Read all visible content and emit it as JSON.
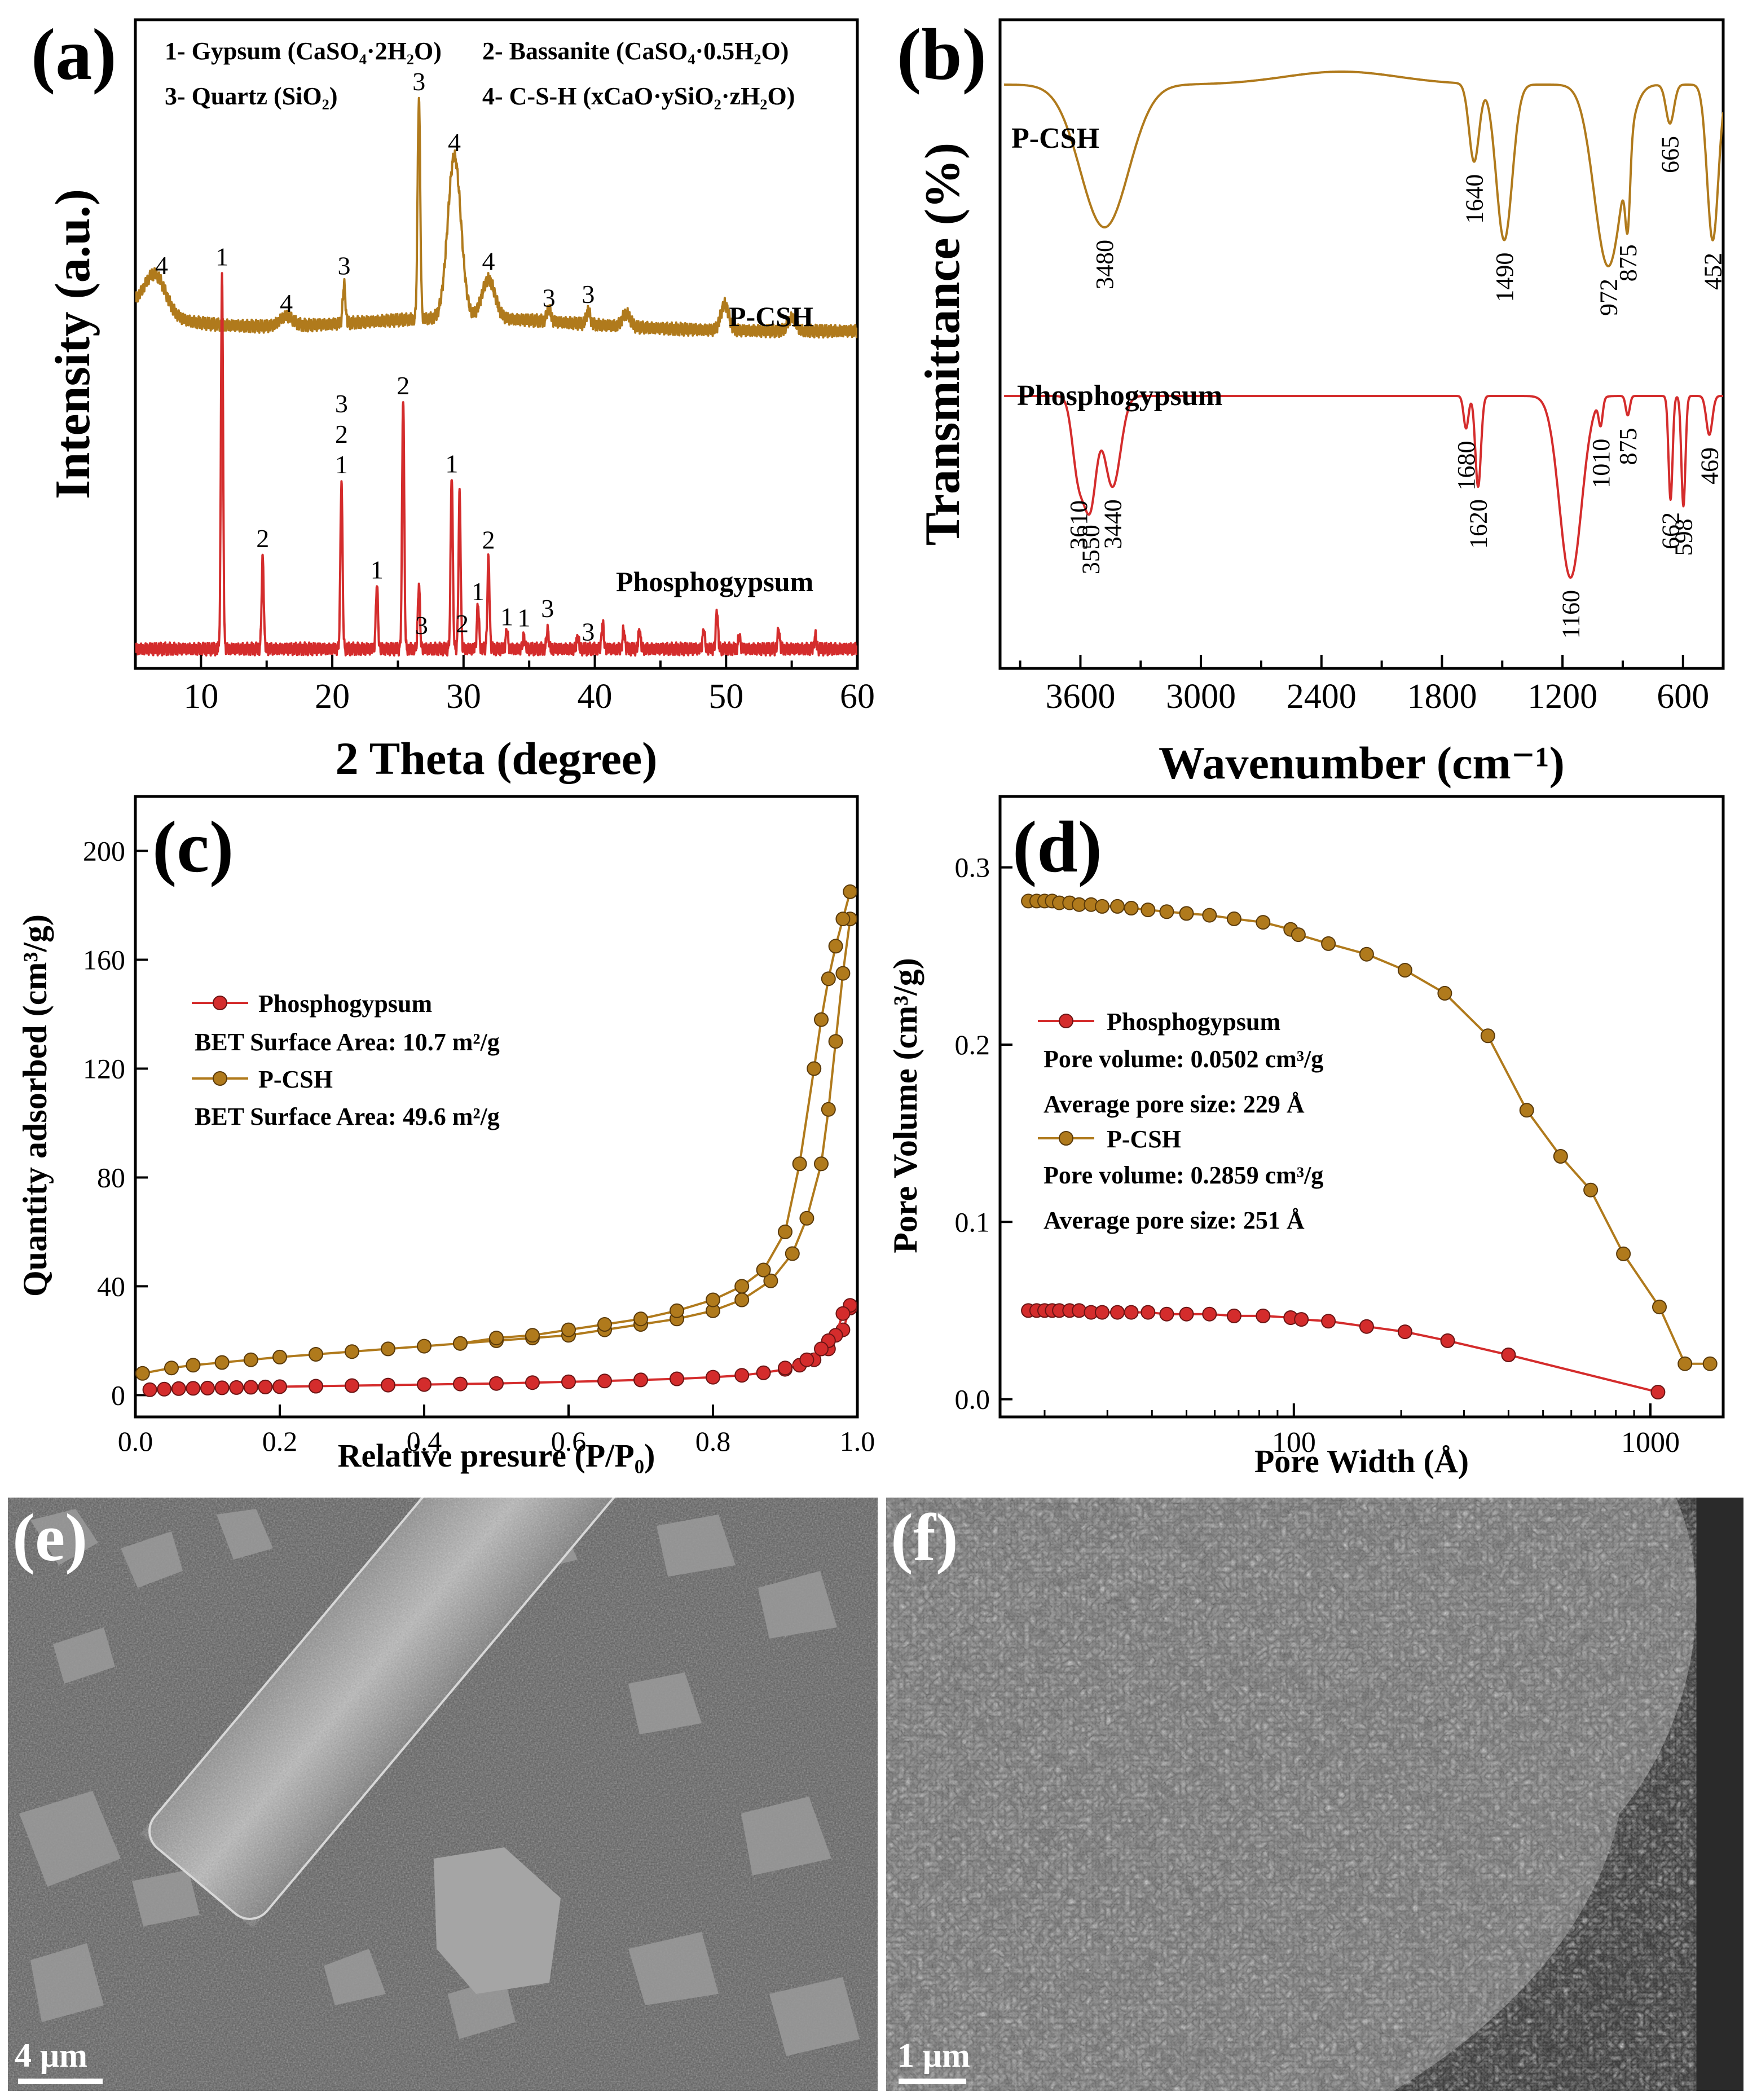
{
  "figure": {
    "labels": {
      "a": "(a)",
      "b": "(b)",
      "c": "(c)",
      "d": "(d)",
      "e": "(e)",
      "f": "(f)"
    }
  },
  "colors": {
    "pcsh": "#b07a1c",
    "pg": "#d42c2c",
    "legend_text": "#7b3fd0"
  },
  "chart_data": [
    {
      "panel": "a",
      "type": "line",
      "xlabel": "2 Theta (degree)",
      "ylabel": "Intensity (a.u.)",
      "xlim": [
        5,
        60
      ],
      "xticks": [
        10,
        20,
        30,
        40,
        50,
        60
      ],
      "legend_lines": [
        [
          "1- Gypsum (CaSO₄·2H₂O)",
          "2- Bassanite (CaSO₄·0.5H₂O)"
        ],
        [
          "3- Quartz (SiO₂)",
          "4- C-S-H (xCaO·ySiO₂·zH₂O)"
        ]
      ],
      "series": [
        {
          "name": "P-CSH",
          "baseline": 0.52,
          "peaks": [
            {
              "x": 6.5,
              "h": 0.06,
              "w": 0.8
            },
            {
              "x": 16.5,
              "h": 0.015,
              "w": 0.5
            },
            {
              "x": 20.9,
              "h": 0.06,
              "w": 0.1
            },
            {
              "x": 26.6,
              "h": 0.34,
              "w": 0.1
            },
            {
              "x": 29.3,
              "h": 0.25,
              "w": 0.5
            },
            {
              "x": 31.9,
              "h": 0.06,
              "w": 0.5
            },
            {
              "x": 36.5,
              "h": 0.02,
              "w": 0.15
            },
            {
              "x": 39.5,
              "h": 0.02,
              "w": 0.15
            },
            {
              "x": 42.4,
              "h": 0.02,
              "w": 0.3
            },
            {
              "x": 49.9,
              "h": 0.04,
              "w": 0.3
            },
            {
              "x": 55.0,
              "h": 0.02,
              "w": 0.3
            }
          ],
          "peak_labels": [
            {
              "x": 7.0,
              "text": "4"
            },
            {
              "x": 16.5,
              "text": "4"
            },
            {
              "x": 20.9,
              "text": "3"
            },
            {
              "x": 26.6,
              "text": "3"
            },
            {
              "x": 29.3,
              "text": "4"
            },
            {
              "x": 31.9,
              "text": "4"
            },
            {
              "x": 36.5,
              "text": "3"
            },
            {
              "x": 39.5,
              "text": "3"
            }
          ]
        },
        {
          "name": "Phosphogypsum",
          "baseline": 0.03,
          "peaks": [
            {
              "x": 11.6,
              "h": 0.58,
              "w": 0.08
            },
            {
              "x": 14.7,
              "h": 0.14,
              "w": 0.08
            },
            {
              "x": 20.7,
              "h": 0.26,
              "w": 0.08
            },
            {
              "x": 23.4,
              "h": 0.1,
              "w": 0.08
            },
            {
              "x": 25.4,
              "h": 0.39,
              "w": 0.08
            },
            {
              "x": 26.6,
              "h": 0.1,
              "w": 0.08
            },
            {
              "x": 29.1,
              "h": 0.27,
              "w": 0.08
            },
            {
              "x": 29.7,
              "h": 0.24,
              "w": 0.08
            },
            {
              "x": 31.1,
              "h": 0.07,
              "w": 0.08
            },
            {
              "x": 31.9,
              "h": 0.14,
              "w": 0.08
            },
            {
              "x": 33.3,
              "h": 0.03,
              "w": 0.08
            },
            {
              "x": 34.6,
              "h": 0.02,
              "w": 0.08
            },
            {
              "x": 36.4,
              "h": 0.03,
              "w": 0.08
            },
            {
              "x": 38.7,
              "h": 0.02,
              "w": 0.08
            },
            {
              "x": 40.6,
              "h": 0.04,
              "w": 0.08
            },
            {
              "x": 42.2,
              "h": 0.03,
              "w": 0.08
            },
            {
              "x": 43.4,
              "h": 0.03,
              "w": 0.08
            },
            {
              "x": 48.3,
              "h": 0.03,
              "w": 0.08
            },
            {
              "x": 49.3,
              "h": 0.06,
              "w": 0.08
            },
            {
              "x": 51.0,
              "h": 0.02,
              "w": 0.08
            },
            {
              "x": 54.0,
              "h": 0.03,
              "w": 0.08
            },
            {
              "x": 56.8,
              "h": 0.02,
              "w": 0.08
            }
          ],
          "peak_labels": [
            {
              "x": 11.6,
              "text": "1"
            },
            {
              "x": 14.7,
              "text": "2"
            },
            {
              "x": 20.7,
              "text": "1"
            },
            {
              "x": 20.7,
              "text": "2",
              "level": 1
            },
            {
              "x": 20.7,
              "text": "3",
              "level": 2
            },
            {
              "x": 23.4,
              "text": "1"
            },
            {
              "x": 25.4,
              "text": "2"
            },
            {
              "x": 26.8,
              "text": "3"
            },
            {
              "x": 29.1,
              "text": "1"
            },
            {
              "x": 29.9,
              "text": "2"
            },
            {
              "x": 31.1,
              "text": "1"
            },
            {
              "x": 31.9,
              "text": "2"
            },
            {
              "x": 33.3,
              "text": "1"
            },
            {
              "x": 34.6,
              "text": "1"
            },
            {
              "x": 36.4,
              "text": "3"
            },
            {
              "x": 39.5,
              "text": "3"
            }
          ]
        }
      ]
    },
    {
      "panel": "b",
      "type": "line",
      "xlabel": "Wavenumber (cm⁻¹)",
      "ylabel": "Transmittance (%)",
      "xlim": [
        4000,
        400
      ],
      "xticks": [
        3600,
        3000,
        2400,
        1800,
        1200,
        600
      ],
      "series": [
        {
          "name": "P-CSH",
          "baseline": 0.9,
          "bands": [
            {
              "x": 3480,
              "d": 0.22,
              "w": 120
            },
            {
              "x": 1640,
              "d": 0.12,
              "w": 25
            },
            {
              "x": 1490,
              "d": 0.24,
              "w": 40
            },
            {
              "x": 972,
              "d": 0.28,
              "w": 70
            },
            {
              "x": 875,
              "d": 0.12,
              "w": 12
            },
            {
              "x": 665,
              "d": 0.06,
              "w": 20
            },
            {
              "x": 452,
              "d": 0.24,
              "w": 28
            }
          ],
          "band_labels": [
            "3480",
            "1640",
            "1490",
            "972",
            "875",
            "665",
            "452"
          ]
        },
        {
          "name": "Phosphogypsum",
          "baseline": 0.42,
          "bands": [
            {
              "x": 3610,
              "d": 0.12,
              "w": 30
            },
            {
              "x": 3550,
              "d": 0.16,
              "w": 30
            },
            {
              "x": 3440,
              "d": 0.14,
              "w": 40
            },
            {
              "x": 1680,
              "d": 0.05,
              "w": 12
            },
            {
              "x": 1620,
              "d": 0.14,
              "w": 14
            },
            {
              "x": 1160,
              "d": 0.28,
              "w": 55
            },
            {
              "x": 1010,
              "d": 0.04,
              "w": 10
            },
            {
              "x": 875,
              "d": 0.03,
              "w": 10
            },
            {
              "x": 662,
              "d": 0.16,
              "w": 10
            },
            {
              "x": 598,
              "d": 0.17,
              "w": 10
            },
            {
              "x": 469,
              "d": 0.06,
              "w": 15
            }
          ],
          "band_labels": [
            "3610",
            "3550",
            "3440",
            "1680",
            "1620",
            "1160",
            "1010",
            "875",
            "662",
            "598",
            "469"
          ]
        }
      ]
    },
    {
      "panel": "c",
      "type": "line",
      "xlabel": "Relative presure (P/P₀)",
      "ylabel": "Quantity adsorbed (cm³/g)",
      "xlim": [
        0.0,
        1.0
      ],
      "ylim": [
        -8,
        220
      ],
      "xticks": [
        0.0,
        0.2,
        0.4,
        0.6,
        0.8,
        1.0
      ],
      "yticks": [
        0,
        40,
        80,
        120,
        160,
        200
      ],
      "legend": [
        {
          "name": "Phosphogypsum",
          "info": "BET Surface Area: 10.7 m²/g"
        },
        {
          "name": "P-CSH",
          "info": "BET Surface Area: 49.6 m²/g"
        }
      ],
      "series": [
        {
          "name": "P-CSH adsorption",
          "x": [
            0.01,
            0.05,
            0.08,
            0.12,
            0.16,
            0.2,
            0.25,
            0.3,
            0.35,
            0.4,
            0.45,
            0.5,
            0.55,
            0.6,
            0.65,
            0.7,
            0.75,
            0.8,
            0.84,
            0.88,
            0.91,
            0.93,
            0.95,
            0.96,
            0.97,
            0.98,
            0.99
          ],
          "y": [
            8,
            10,
            11,
            12,
            13,
            14,
            15,
            16,
            17,
            18,
            19,
            20,
            21,
            22,
            24,
            26,
            28,
            31,
            35,
            42,
            52,
            65,
            85,
            105,
            130,
            155,
            175
          ]
        },
        {
          "name": "P-CSH desorption",
          "x": [
            0.99,
            0.98,
            0.97,
            0.96,
            0.95,
            0.94,
            0.92,
            0.9,
            0.87,
            0.84,
            0.8,
            0.75,
            0.7,
            0.65,
            0.6,
            0.55,
            0.5,
            0.45
          ],
          "y": [
            185,
            175,
            165,
            153,
            138,
            120,
            85,
            60,
            46,
            40,
            35,
            31,
            28,
            26,
            24,
            22,
            21,
            19
          ]
        },
        {
          "name": "Phosphogypsum adsorption",
          "x": [
            0.02,
            0.04,
            0.06,
            0.08,
            0.1,
            0.12,
            0.14,
            0.16,
            0.18,
            0.2,
            0.25,
            0.3,
            0.35,
            0.4,
            0.45,
            0.5,
            0.55,
            0.6,
            0.65,
            0.7,
            0.75,
            0.8,
            0.84,
            0.87,
            0.9,
            0.92,
            0.94,
            0.96,
            0.98,
            0.99
          ],
          "y": [
            2,
            2.2,
            2.4,
            2.5,
            2.6,
            2.7,
            2.8,
            2.9,
            3.0,
            3.1,
            3.3,
            3.5,
            3.7,
            3.9,
            4.1,
            4.3,
            4.6,
            4.9,
            5.2,
            5.6,
            6.0,
            6.6,
            7.3,
            8.2,
            9.5,
            11,
            13,
            17,
            24,
            32
          ]
        },
        {
          "name": "Phosphogypsum desorption",
          "x": [
            0.99,
            0.98,
            0.97,
            0.96,
            0.95,
            0.93,
            0.9
          ],
          "y": [
            33,
            30,
            22,
            20,
            17,
            13,
            10
          ]
        }
      ]
    },
    {
      "panel": "d",
      "type": "line",
      "xlabel": "Pore Width (Å)",
      "ylabel": "Pore Volume (cm³/g)",
      "xscale": "log",
      "xlim": [
        15,
        1600
      ],
      "ylim": [
        -0.01,
        0.34
      ],
      "xticks": [
        100,
        1000
      ],
      "yticks": [
        0.0,
        0.1,
        0.2,
        0.3
      ],
      "legend": [
        {
          "name": "Phosphogypsum",
          "info": [
            "Pore volume: 0.0502 cm³/g",
            "Average pore size: 229 Å"
          ]
        },
        {
          "name": "P-CSH",
          "info": [
            "Pore volume: 0.2859 cm³/g",
            "Average pore size: 251 Å"
          ]
        }
      ],
      "series": [
        {
          "name": "P-CSH",
          "x": [
            18,
            19,
            20,
            21,
            22,
            23.5,
            25,
            27,
            29,
            32,
            35,
            39,
            44,
            50,
            58,
            68,
            82,
            98,
            103,
            125,
            160,
            205,
            265,
            350,
            450,
            560,
            680,
            840,
            1060,
            1250,
            1470
          ],
          "y": [
            0.281,
            0.281,
            0.281,
            0.281,
            0.28,
            0.28,
            0.279,
            0.279,
            0.278,
            0.278,
            0.277,
            0.276,
            0.275,
            0.274,
            0.273,
            0.271,
            0.269,
            0.265,
            0.262,
            0.257,
            0.251,
            0.242,
            0.229,
            0.205,
            0.163,
            0.137,
            0.118,
            0.082,
            0.052,
            0.02,
            0.02
          ]
        },
        {
          "name": "Phosphogypsum",
          "x": [
            18,
            19,
            20,
            21,
            22,
            23.5,
            25,
            27,
            29,
            32,
            35,
            39,
            44,
            50,
            58,
            68,
            82,
            98,
            105,
            125,
            160,
            205,
            270,
            400,
            1050
          ],
          "y": [
            0.05,
            0.05,
            0.05,
            0.05,
            0.05,
            0.05,
            0.05,
            0.049,
            0.049,
            0.049,
            0.049,
            0.049,
            0.048,
            0.048,
            0.048,
            0.047,
            0.047,
            0.046,
            0.045,
            0.044,
            0.041,
            0.038,
            0.033,
            0.025,
            0.004
          ]
        }
      ]
    }
  ],
  "sem": {
    "e": {
      "scale": "4 μm"
    },
    "f": {
      "scale": "1 μm"
    }
  }
}
